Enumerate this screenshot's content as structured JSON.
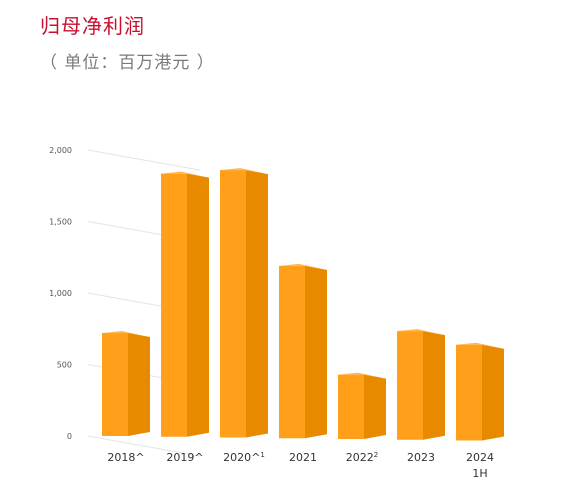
{
  "title": "归母净利润",
  "subtitle": "（ 单位：百万港元 ）",
  "chart_data": {
    "type": "bar",
    "title": "归母净利润",
    "subtitle": "（ 单位：百万港元 ）",
    "categories": [
      {
        "label": "2018^",
        "sup": ""
      },
      {
        "label": "2019^",
        "sup": ""
      },
      {
        "label": "2020^",
        "sup": "1"
      },
      {
        "label": "2021",
        "sup": ""
      },
      {
        "label": "2022",
        "sup": "2"
      },
      {
        "label": "2023",
        "sup": ""
      },
      {
        "label": "2024",
        "label2": "1H",
        "sup": ""
      }
    ],
    "values": [
      720,
      1840,
      1870,
      1205,
      450,
      760,
      670
    ],
    "ylim": [
      0,
      2000
    ],
    "yticks": [
      {
        "value": 0,
        "label": "0"
      },
      {
        "value": 500,
        "label": "500"
      },
      {
        "value": 1000,
        "label": "1,000"
      },
      {
        "value": 1500,
        "label": "1,500"
      },
      {
        "value": 2000,
        "label": "2,000"
      }
    ],
    "grid": true,
    "colors": {
      "front": "#ff9f1a",
      "side": "#e88a00",
      "top": "#ffb84d",
      "grid": "#e3e3e3"
    }
  }
}
